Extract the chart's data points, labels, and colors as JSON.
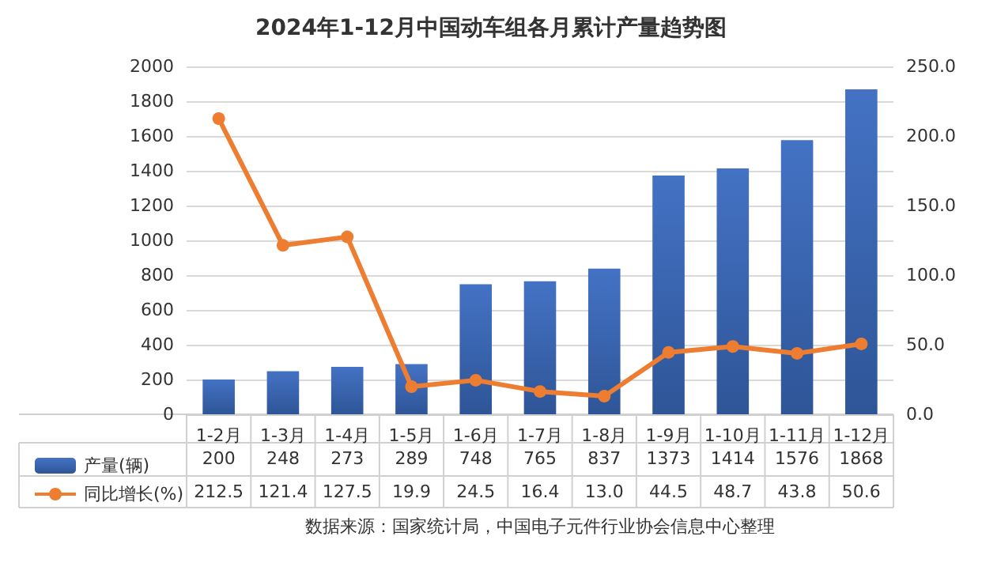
{
  "chart_data": {
    "type": "bar",
    "title": "2024年1-12月中国动车组各月累计产量趋势图",
    "categories": [
      "1-2月",
      "1-3月",
      "1-4月",
      "1-5月",
      "1-6月",
      "1-7月",
      "1-8月",
      "1-9月",
      "1-10月",
      "1-11月",
      "1-12月"
    ],
    "series": [
      {
        "name": "产量(辆)",
        "color": "#4472c4",
        "values": [
          200,
          248,
          273,
          289,
          748,
          765,
          837,
          1373,
          1414,
          1576,
          1868
        ],
        "value_labels": [
          "200",
          "248",
          "273",
          "289",
          "748",
          "765",
          "837",
          "1373",
          "1414",
          "1576",
          "1868"
        ]
      },
      {
        "name": "同比增长(%)",
        "type": "line",
        "axis": "y2",
        "color": "#ed7d31",
        "marker": "circle",
        "values": [
          212.5,
          121.4,
          127.5,
          19.9,
          24.5,
          16.4,
          13.0,
          44.5,
          48.7,
          43.8,
          50.6
        ],
        "value_labels": [
          "212.5",
          "121.4",
          "127.5",
          "19.9",
          "24.5",
          "16.4",
          "13.0",
          "44.5",
          "48.7",
          "43.8",
          "50.6"
        ]
      }
    ],
    "ylim": [
      0,
      2000
    ],
    "yticks": [
      0,
      200,
      400,
      600,
      800,
      1000,
      1200,
      1400,
      1600,
      1800,
      2000
    ],
    "y2lim": [
      0,
      250
    ],
    "y2ticks": [
      {
        "value": 0,
        "label": "0.0"
      },
      {
        "value": 50,
        "label": "50.0"
      },
      {
        "value": 100,
        "label": "100.0"
      },
      {
        "value": 150,
        "label": "150.0"
      },
      {
        "value": 200,
        "label": "200.0"
      },
      {
        "value": 250,
        "label": "250.0"
      }
    ],
    "grid": "y",
    "legend": "bottom left",
    "annotations": [
      "数据来源：国家统计局，中国电子元件行业协会信息中心整理"
    ]
  }
}
